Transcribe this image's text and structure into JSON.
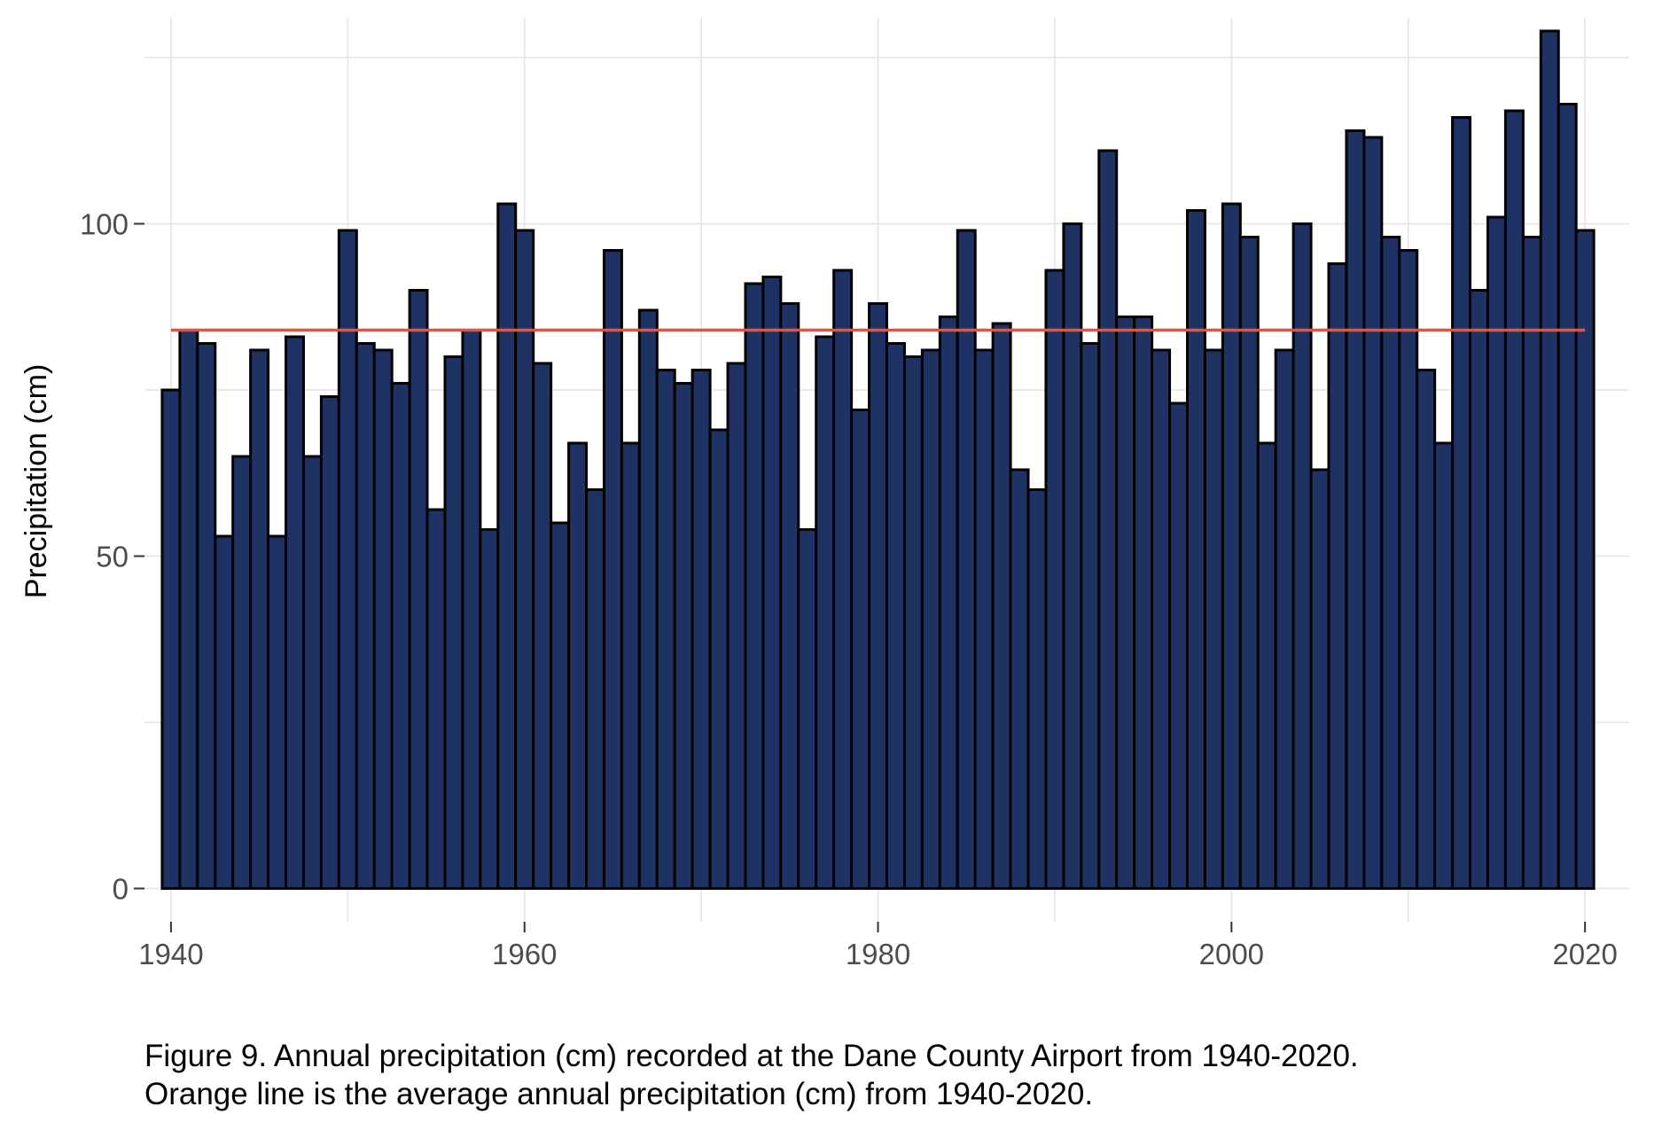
{
  "chart_data": {
    "type": "bar",
    "ylabel": "Precipitation (cm)",
    "xlabel": "",
    "xlim": [
      1938.5,
      2022.5
    ],
    "ylim": [
      -5,
      131
    ],
    "x_ticks": [
      1940,
      1960,
      1980,
      2000,
      2020
    ],
    "y_ticks": [
      0,
      50,
      100
    ],
    "grid": true,
    "colors": {
      "bar_fill": "#1f3264",
      "bar_outline": "#000000",
      "mean_line": "#e8523a",
      "grid": "#e3e3e3"
    },
    "mean_line": {
      "label": "average annual precipitation",
      "value": 84,
      "x_start": 1940,
      "x_end": 2020
    },
    "x": [
      1940,
      1941,
      1942,
      1943,
      1944,
      1945,
      1946,
      1947,
      1948,
      1949,
      1950,
      1951,
      1952,
      1953,
      1954,
      1955,
      1956,
      1957,
      1958,
      1959,
      1960,
      1961,
      1962,
      1963,
      1964,
      1965,
      1966,
      1967,
      1968,
      1969,
      1970,
      1971,
      1972,
      1973,
      1974,
      1975,
      1976,
      1977,
      1978,
      1979,
      1980,
      1981,
      1982,
      1983,
      1984,
      1985,
      1986,
      1987,
      1988,
      1989,
      1990,
      1991,
      1992,
      1993,
      1994,
      1995,
      1996,
      1997,
      1998,
      1999,
      2000,
      2001,
      2002,
      2003,
      2004,
      2005,
      2006,
      2007,
      2008,
      2009,
      2010,
      2011,
      2012,
      2013,
      2014,
      2015,
      2016,
      2017,
      2018,
      2019,
      2020
    ],
    "values": [
      75,
      84,
      82,
      53,
      65,
      81,
      53,
      83,
      65,
      74,
      99,
      82,
      81,
      76,
      90,
      57,
      80,
      84,
      54,
      103,
      99,
      79,
      55,
      67,
      60,
      96,
      67,
      87,
      78,
      76,
      78,
      69,
      79,
      91,
      92,
      88,
      54,
      83,
      93,
      72,
      88,
      82,
      80,
      81,
      86,
      99,
      81,
      85,
      63,
      60,
      93,
      100,
      82,
      111,
      86,
      86,
      81,
      73,
      102,
      81,
      103,
      98,
      67,
      81,
      100,
      63,
      94,
      114,
      113,
      98,
      96,
      78,
      67,
      116,
      90,
      101,
      117,
      98,
      129,
      118,
      99
    ]
  },
  "caption": {
    "line1": "Figure 9. Annual precipitation (cm) recorded at the Dane County Airport from 1940-2020.",
    "line2": "Orange line is the average annual precipitation (cm) from 1940-2020."
  }
}
